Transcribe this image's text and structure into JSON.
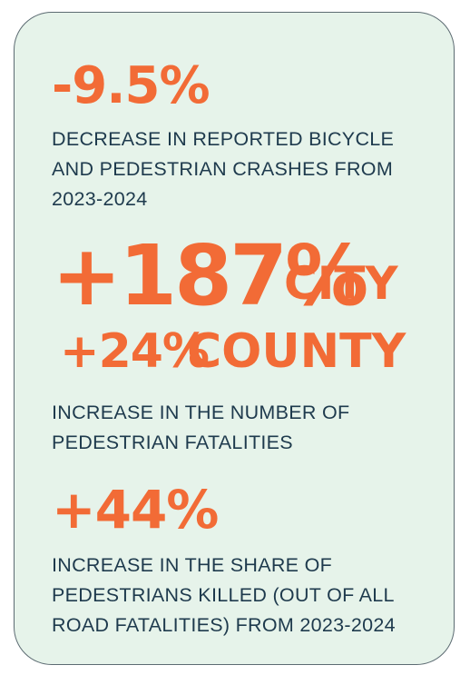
{
  "stats": {
    "crashes": {
      "value": "-9.5%",
      "description": [
        "DECREASE IN REPORTED BICYCLE",
        "AND PEDESTRIAN CRASHES FROM",
        "2023-2024"
      ]
    },
    "fatalities": {
      "city_value": "+187%",
      "city_label": "CITY",
      "county_value": "+24%",
      "county_label": "COUNTY",
      "description": [
        "INCREASE IN THE NUMBER OF",
        "PEDESTRIAN FATALITIES"
      ]
    },
    "share": {
      "value": "+44%",
      "description": [
        "INCREASE IN THE SHARE OF",
        "PEDESTRIANS KILLED (OUT OF ALL",
        "ROAD FATALITIES) FROM 2023-2024"
      ]
    }
  },
  "colors": {
    "accent": "#f26b36",
    "text": "#1e3a4d",
    "card_background": "#e6f3ea",
    "card_border": "#5c6b72"
  }
}
